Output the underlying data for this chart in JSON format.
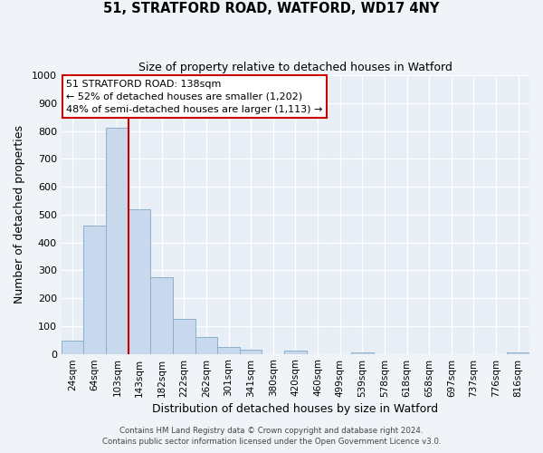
{
  "title1": "51, STRATFORD ROAD, WATFORD, WD17 4NY",
  "title2": "Size of property relative to detached houses in Watford",
  "xlabel": "Distribution of detached houses by size in Watford",
  "ylabel": "Number of detached properties",
  "bar_labels": [
    "24sqm",
    "64sqm",
    "103sqm",
    "143sqm",
    "182sqm",
    "222sqm",
    "262sqm",
    "301sqm",
    "341sqm",
    "380sqm",
    "420sqm",
    "460sqm",
    "499sqm",
    "539sqm",
    "578sqm",
    "618sqm",
    "658sqm",
    "697sqm",
    "737sqm",
    "776sqm",
    "816sqm"
  ],
  "bar_heights": [
    47,
    460,
    810,
    520,
    275,
    125,
    60,
    25,
    15,
    0,
    10,
    0,
    0,
    5,
    0,
    0,
    0,
    0,
    0,
    0,
    5
  ],
  "bar_color": "#c9d9ed",
  "bar_edge_color": "#8ab0cc",
  "vline_color": "#cc0000",
  "ylim": [
    0,
    1000
  ],
  "yticks": [
    0,
    100,
    200,
    300,
    400,
    500,
    600,
    700,
    800,
    900,
    1000
  ],
  "annotation_title": "51 STRATFORD ROAD: 138sqm",
  "annotation_line1": "← 52% of detached houses are smaller (1,202)",
  "annotation_line2": "48% of semi-detached houses are larger (1,113) →",
  "annotation_box_color": "#ffffff",
  "annotation_box_edge": "#cc0000",
  "footer1": "Contains HM Land Registry data © Crown copyright and database right 2024.",
  "footer2": "Contains public sector information licensed under the Open Government Licence v3.0.",
  "fig_bg_color": "#f0f4f8",
  "plot_bg_color": "#e8eef5"
}
